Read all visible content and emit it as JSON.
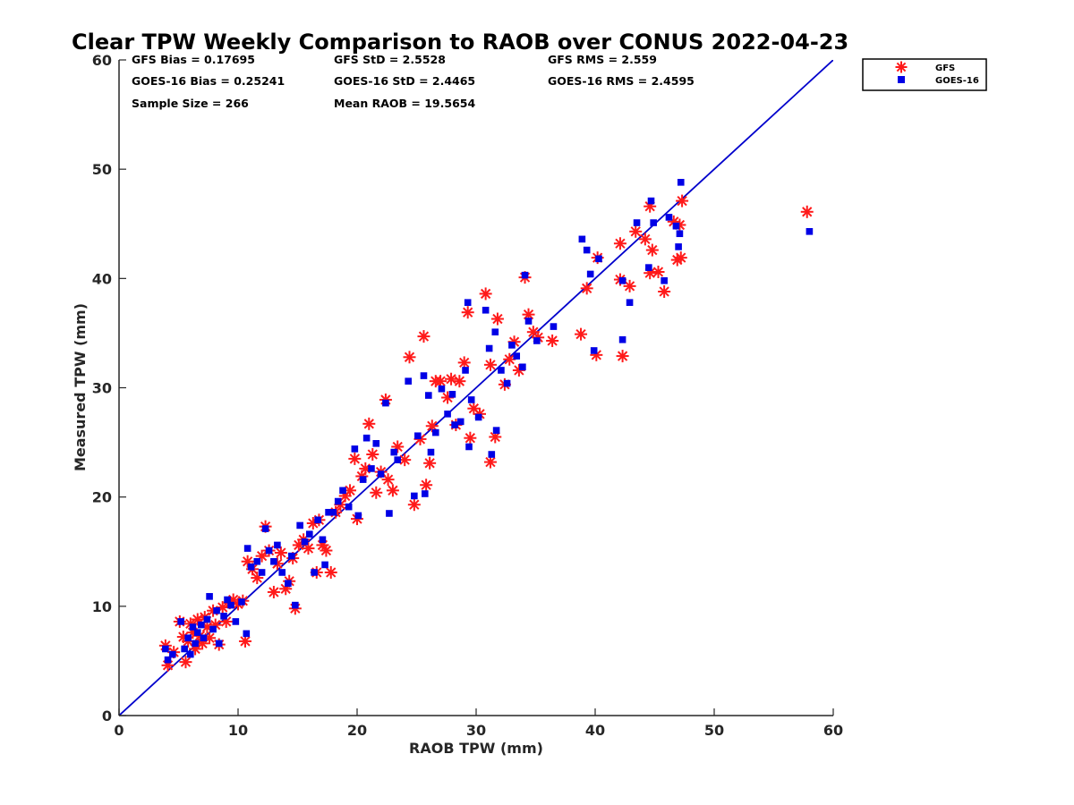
{
  "chart_data": {
    "type": "scatter",
    "title": "Clear TPW Weekly Comparison to RAOB over CONUS 2022-04-23",
    "xlabel": "RAOB TPW (mm)",
    "ylabel": "Measured TPW (mm)",
    "xlim": [
      0,
      60
    ],
    "ylim": [
      0,
      60
    ],
    "xticks": [
      "0",
      "10",
      "20",
      "30",
      "40",
      "50",
      "60"
    ],
    "yticks": [
      "0",
      "10",
      "20",
      "30",
      "40",
      "50",
      "60"
    ],
    "grid": false,
    "legend": {
      "placement": "top-right-outside",
      "entries": [
        "GFS",
        "GOES-16"
      ]
    },
    "reference_line": {
      "x": [
        0,
        60
      ],
      "y": [
        0,
        60
      ],
      "color": "#0000cc"
    },
    "stats": [
      "GFS Bias = 0.17695",
      "GFS StD = 2.5528",
      "GFS RMS = 2.559",
      "GOES-16 Bias = 0.25241",
      "GOES-16 StD = 2.4465",
      "GOES-16 RMS = 2.4595",
      "Sample Size = 266",
      "Mean RAOB = 19.5654"
    ],
    "series": [
      {
        "name": "GFS",
        "marker": "asterisk",
        "color": "#ff1a1a",
        "points": [
          [
            3.9,
            6.4
          ],
          [
            4.1,
            4.6
          ],
          [
            4.6,
            5.8
          ],
          [
            5.1,
            8.6
          ],
          [
            5.4,
            7.2
          ],
          [
            5.6,
            4.9
          ],
          [
            5.8,
            6.8
          ],
          [
            6.0,
            8.4
          ],
          [
            6.2,
            7.6
          ],
          [
            6.4,
            6.1
          ],
          [
            6.6,
            8.8
          ],
          [
            6.8,
            7.3
          ],
          [
            7.0,
            6.6
          ],
          [
            7.2,
            9.0
          ],
          [
            7.4,
            8.1
          ],
          [
            7.6,
            7.1
          ],
          [
            7.9,
            9.6
          ],
          [
            8.1,
            8.3
          ],
          [
            8.4,
            6.5
          ],
          [
            8.7,
            9.9
          ],
          [
            9.0,
            8.6
          ],
          [
            9.3,
            10.3
          ],
          [
            9.6,
            10.6
          ],
          [
            10.0,
            10.2
          ],
          [
            10.4,
            10.5
          ],
          [
            10.6,
            6.8
          ],
          [
            10.8,
            14.1
          ],
          [
            11.2,
            13.4
          ],
          [
            11.6,
            12.6
          ],
          [
            12.0,
            14.6
          ],
          [
            12.3,
            17.3
          ],
          [
            12.6,
            15.1
          ],
          [
            13.0,
            11.3
          ],
          [
            13.3,
            13.9
          ],
          [
            13.6,
            14.9
          ],
          [
            14.0,
            11.6
          ],
          [
            14.3,
            12.3
          ],
          [
            14.6,
            14.4
          ],
          [
            14.8,
            9.8
          ],
          [
            15.1,
            15.6
          ],
          [
            15.5,
            16.1
          ],
          [
            15.9,
            15.3
          ],
          [
            16.3,
            17.6
          ],
          [
            16.6,
            13.1
          ],
          [
            16.8,
            17.9
          ],
          [
            17.1,
            15.6
          ],
          [
            17.4,
            15.1
          ],
          [
            17.8,
            13.1
          ],
          [
            18.2,
            18.6
          ],
          [
            18.6,
            19.3
          ],
          [
            19.0,
            20.1
          ],
          [
            19.4,
            20.6
          ],
          [
            19.8,
            23.5
          ],
          [
            20.0,
            18.0
          ],
          [
            20.4,
            21.9
          ],
          [
            20.7,
            22.6
          ],
          [
            21.0,
            26.7
          ],
          [
            21.3,
            23.9
          ],
          [
            21.6,
            20.4
          ],
          [
            22.0,
            22.3
          ],
          [
            22.4,
            28.9
          ],
          [
            22.6,
            21.6
          ],
          [
            23.0,
            20.6
          ],
          [
            23.4,
            24.6
          ],
          [
            24.0,
            23.4
          ],
          [
            24.4,
            32.8
          ],
          [
            24.8,
            19.3
          ],
          [
            25.3,
            25.3
          ],
          [
            25.6,
            34.7
          ],
          [
            25.8,
            21.1
          ],
          [
            26.1,
            23.1
          ],
          [
            26.3,
            26.5
          ],
          [
            26.6,
            30.6
          ],
          [
            27.0,
            30.6
          ],
          [
            27.6,
            29.1
          ],
          [
            27.9,
            30.8
          ],
          [
            28.3,
            26.6
          ],
          [
            28.6,
            30.6
          ],
          [
            29.0,
            32.3
          ],
          [
            29.3,
            36.9
          ],
          [
            29.5,
            25.4
          ],
          [
            29.8,
            28.1
          ],
          [
            30.3,
            27.6
          ],
          [
            30.8,
            38.6
          ],
          [
            31.2,
            32.1
          ],
          [
            31.2,
            23.2
          ],
          [
            31.6,
            25.5
          ],
          [
            31.8,
            36.3
          ],
          [
            32.4,
            30.3
          ],
          [
            32.8,
            32.6
          ],
          [
            33.2,
            34.2
          ],
          [
            33.6,
            31.6
          ],
          [
            34.1,
            40.1
          ],
          [
            34.4,
            36.7
          ],
          [
            34.8,
            35.1
          ],
          [
            35.2,
            34.6
          ],
          [
            36.4,
            34.3
          ],
          [
            38.8,
            34.9
          ],
          [
            39.3,
            39.1
          ],
          [
            40.1,
            33.0
          ],
          [
            40.2,
            41.9
          ],
          [
            42.1,
            39.9
          ],
          [
            42.1,
            43.2
          ],
          [
            42.3,
            32.9
          ],
          [
            42.9,
            39.3
          ],
          [
            43.4,
            44.3
          ],
          [
            44.2,
            43.6
          ],
          [
            44.6,
            40.5
          ],
          [
            44.6,
            46.6
          ],
          [
            44.8,
            42.6
          ],
          [
            45.3,
            40.6
          ],
          [
            45.8,
            38.8
          ],
          [
            46.6,
            45.2
          ],
          [
            46.9,
            41.7
          ],
          [
            47.1,
            44.9
          ],
          [
            47.2,
            41.9
          ],
          [
            47.3,
            47.1
          ],
          [
            57.8,
            46.1
          ]
        ]
      },
      {
        "name": "GOES-16",
        "marker": "square",
        "color": "#0000e6",
        "points": [
          [
            3.9,
            6.1
          ],
          [
            4.1,
            5.1
          ],
          [
            4.5,
            5.6
          ],
          [
            5.2,
            8.6
          ],
          [
            5.5,
            6.1
          ],
          [
            5.8,
            7.1
          ],
          [
            6.0,
            5.6
          ],
          [
            6.2,
            8.1
          ],
          [
            6.4,
            6.6
          ],
          [
            6.6,
            7.6
          ],
          [
            6.9,
            8.3
          ],
          [
            7.1,
            7.1
          ],
          [
            7.4,
            8.8
          ],
          [
            7.6,
            10.9
          ],
          [
            7.9,
            7.9
          ],
          [
            8.2,
            9.6
          ],
          [
            8.4,
            6.6
          ],
          [
            8.8,
            9.1
          ],
          [
            9.1,
            10.6
          ],
          [
            9.4,
            10.1
          ],
          [
            9.8,
            8.6
          ],
          [
            10.3,
            10.4
          ],
          [
            10.7,
            7.5
          ],
          [
            10.8,
            15.3
          ],
          [
            11.1,
            13.6
          ],
          [
            11.6,
            14.1
          ],
          [
            12.0,
            13.1
          ],
          [
            12.3,
            17.1
          ],
          [
            12.6,
            15.1
          ],
          [
            13.0,
            14.1
          ],
          [
            13.3,
            15.6
          ],
          [
            13.7,
            13.1
          ],
          [
            14.2,
            12.1
          ],
          [
            14.5,
            14.6
          ],
          [
            14.8,
            10.1
          ],
          [
            15.2,
            17.4
          ],
          [
            15.6,
            15.9
          ],
          [
            16.0,
            16.6
          ],
          [
            16.4,
            13.1
          ],
          [
            16.7,
            17.9
          ],
          [
            17.1,
            16.1
          ],
          [
            17.3,
            13.8
          ],
          [
            17.6,
            18.6
          ],
          [
            18.0,
            18.6
          ],
          [
            18.4,
            19.6
          ],
          [
            18.8,
            20.6
          ],
          [
            19.3,
            19.1
          ],
          [
            19.8,
            24.4
          ],
          [
            20.1,
            18.3
          ],
          [
            20.5,
            21.6
          ],
          [
            20.8,
            25.4
          ],
          [
            21.2,
            22.6
          ],
          [
            21.6,
            24.9
          ],
          [
            22.0,
            22.1
          ],
          [
            22.4,
            28.6
          ],
          [
            22.7,
            18.5
          ],
          [
            23.1,
            24.1
          ],
          [
            23.4,
            23.4
          ],
          [
            24.3,
            30.6
          ],
          [
            24.8,
            20.1
          ],
          [
            25.1,
            25.6
          ],
          [
            25.6,
            31.1
          ],
          [
            25.7,
            20.3
          ],
          [
            26.0,
            29.3
          ],
          [
            26.2,
            24.1
          ],
          [
            26.6,
            25.9
          ],
          [
            27.1,
            29.9
          ],
          [
            27.6,
            27.6
          ],
          [
            28.0,
            29.4
          ],
          [
            28.2,
            26.6
          ],
          [
            28.7,
            26.9
          ],
          [
            29.1,
            31.6
          ],
          [
            29.3,
            37.8
          ],
          [
            29.4,
            24.6
          ],
          [
            29.6,
            28.9
          ],
          [
            30.2,
            27.3
          ],
          [
            30.8,
            37.1
          ],
          [
            31.1,
            33.6
          ],
          [
            31.3,
            23.9
          ],
          [
            31.6,
            35.1
          ],
          [
            31.7,
            26.1
          ],
          [
            32.1,
            31.6
          ],
          [
            32.6,
            30.4
          ],
          [
            33.0,
            33.9
          ],
          [
            33.4,
            32.9
          ],
          [
            33.9,
            31.9
          ],
          [
            34.1,
            40.3
          ],
          [
            34.4,
            36.1
          ],
          [
            35.1,
            34.3
          ],
          [
            36.5,
            35.6
          ],
          [
            38.9,
            43.6
          ],
          [
            39.3,
            42.6
          ],
          [
            39.6,
            40.4
          ],
          [
            39.9,
            33.4
          ],
          [
            40.3,
            41.8
          ],
          [
            42.3,
            39.8
          ],
          [
            42.3,
            34.4
          ],
          [
            42.9,
            37.8
          ],
          [
            43.5,
            45.1
          ],
          [
            44.5,
            41.0
          ],
          [
            44.7,
            47.1
          ],
          [
            44.9,
            45.1
          ],
          [
            45.8,
            39.8
          ],
          [
            46.2,
            45.6
          ],
          [
            46.8,
            44.8
          ],
          [
            47.0,
            42.9
          ],
          [
            47.1,
            44.1
          ],
          [
            47.2,
            48.8
          ],
          [
            58.0,
            44.3
          ]
        ]
      }
    ]
  }
}
